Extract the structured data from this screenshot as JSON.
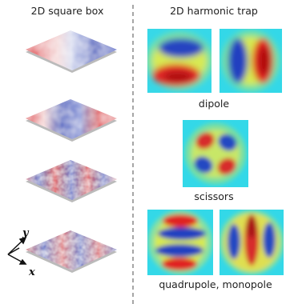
{
  "left_panel": {
    "title": "2D square box"
  },
  "right_panel": {
    "title": "2D harmonic trap",
    "labels": {
      "dipole": "dipole",
      "scissors": "scissors",
      "quad_mono": "quadrupole, monopole"
    }
  },
  "axes": {
    "y": "y",
    "x": "x"
  },
  "colors": {
    "red": "#e0343a",
    "blue": "#2f46b8",
    "cyan": "#33ddee",
    "yellow": "#f5e632",
    "divider": "#888888"
  }
}
